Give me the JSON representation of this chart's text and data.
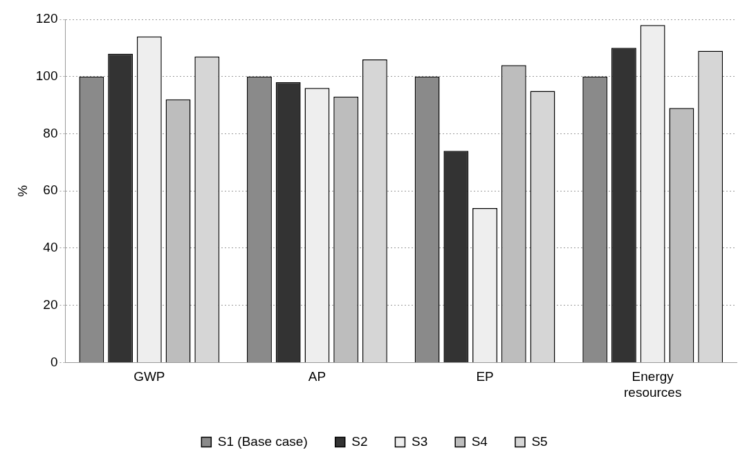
{
  "chart_data": {
    "type": "bar",
    "ylabel": "%",
    "categories": [
      "GWP",
      "AP",
      "EP",
      "Energy resources"
    ],
    "series": [
      {
        "name": "S1 (Base case)",
        "color": "#8a8a8a",
        "values": [
          100,
          100,
          100,
          100
        ]
      },
      {
        "name": "S2",
        "color": "#333333",
        "values": [
          108,
          98,
          74,
          110
        ]
      },
      {
        "name": "S3",
        "color": "#eeeeee",
        "values": [
          114,
          96,
          54,
          118
        ]
      },
      {
        "name": "S4",
        "color": "#bdbdbd",
        "values": [
          92,
          93,
          104,
          89
        ]
      },
      {
        "name": "S5",
        "color": "#d6d6d6",
        "values": [
          107,
          106,
          95,
          109
        ]
      }
    ],
    "ylim": [
      0,
      120
    ],
    "yticks": [
      0,
      20,
      40,
      60,
      80,
      100,
      120
    ],
    "grid": "y",
    "legend": "bottom"
  }
}
